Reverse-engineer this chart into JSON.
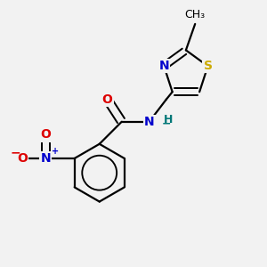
{
  "background_color": "#f2f2f2",
  "figsize": [
    3.0,
    3.0
  ],
  "dpi": 100,
  "atom_colors": {
    "C": "#000000",
    "N": "#0000cc",
    "O": "#dd0000",
    "S": "#ccaa00",
    "H": "#007777"
  },
  "bond_color": "#000000",
  "bond_width": 1.6,
  "font_size_atom": 10,
  "font_size_methyl": 9
}
